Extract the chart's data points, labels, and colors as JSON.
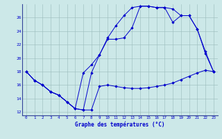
{
  "xlabel": "Graphe des températures (°C)",
  "background_color": "#cce8e8",
  "line_color": "#0000cc",
  "xlim": [
    -0.5,
    23.5
  ],
  "ylim": [
    11.5,
    28.0
  ],
  "xticks": [
    0,
    1,
    2,
    3,
    4,
    5,
    6,
    7,
    8,
    9,
    10,
    11,
    12,
    13,
    14,
    15,
    16,
    17,
    18,
    19,
    20,
    21,
    22,
    23
  ],
  "yticks": [
    12,
    14,
    16,
    18,
    20,
    22,
    24,
    26
  ],
  "curve_low_x": [
    0,
    1,
    2,
    3,
    4,
    5,
    6,
    7,
    8,
    9,
    10,
    11,
    12,
    13,
    14,
    15,
    16,
    17,
    18,
    19,
    20,
    21,
    22,
    23
  ],
  "curve_low_y": [
    18.0,
    16.7,
    16.0,
    15.0,
    14.5,
    13.5,
    12.5,
    12.3,
    12.3,
    15.8,
    16.0,
    15.8,
    15.6,
    15.5,
    15.5,
    15.6,
    15.8,
    16.0,
    16.3,
    16.8,
    17.3,
    17.8,
    18.2,
    18.0
  ],
  "curve_mid_x": [
    0,
    1,
    2,
    3,
    4,
    5,
    6,
    7,
    8,
    9,
    10,
    11,
    12,
    13,
    14,
    15,
    16,
    17,
    18,
    19,
    20,
    21,
    22,
    23
  ],
  "curve_mid_y": [
    18.0,
    16.7,
    16.0,
    15.0,
    14.5,
    13.5,
    12.5,
    12.3,
    17.8,
    20.5,
    22.8,
    22.8,
    23.0,
    24.5,
    27.7,
    27.7,
    27.5,
    27.5,
    27.3,
    26.3,
    26.3,
    24.3,
    21.0,
    18.0
  ],
  "curve_high_x": [
    0,
    1,
    2,
    3,
    4,
    5,
    6,
    7,
    8,
    9,
    10,
    11,
    12,
    13,
    14,
    15,
    16,
    17,
    18,
    19,
    20,
    21,
    22,
    23
  ],
  "curve_high_y": [
    18.0,
    16.7,
    16.0,
    15.0,
    14.5,
    13.5,
    12.5,
    17.8,
    19.0,
    20.5,
    23.0,
    24.8,
    26.3,
    27.5,
    27.7,
    27.7,
    27.5,
    27.5,
    25.3,
    26.3,
    26.3,
    24.3,
    20.7,
    18.0
  ]
}
